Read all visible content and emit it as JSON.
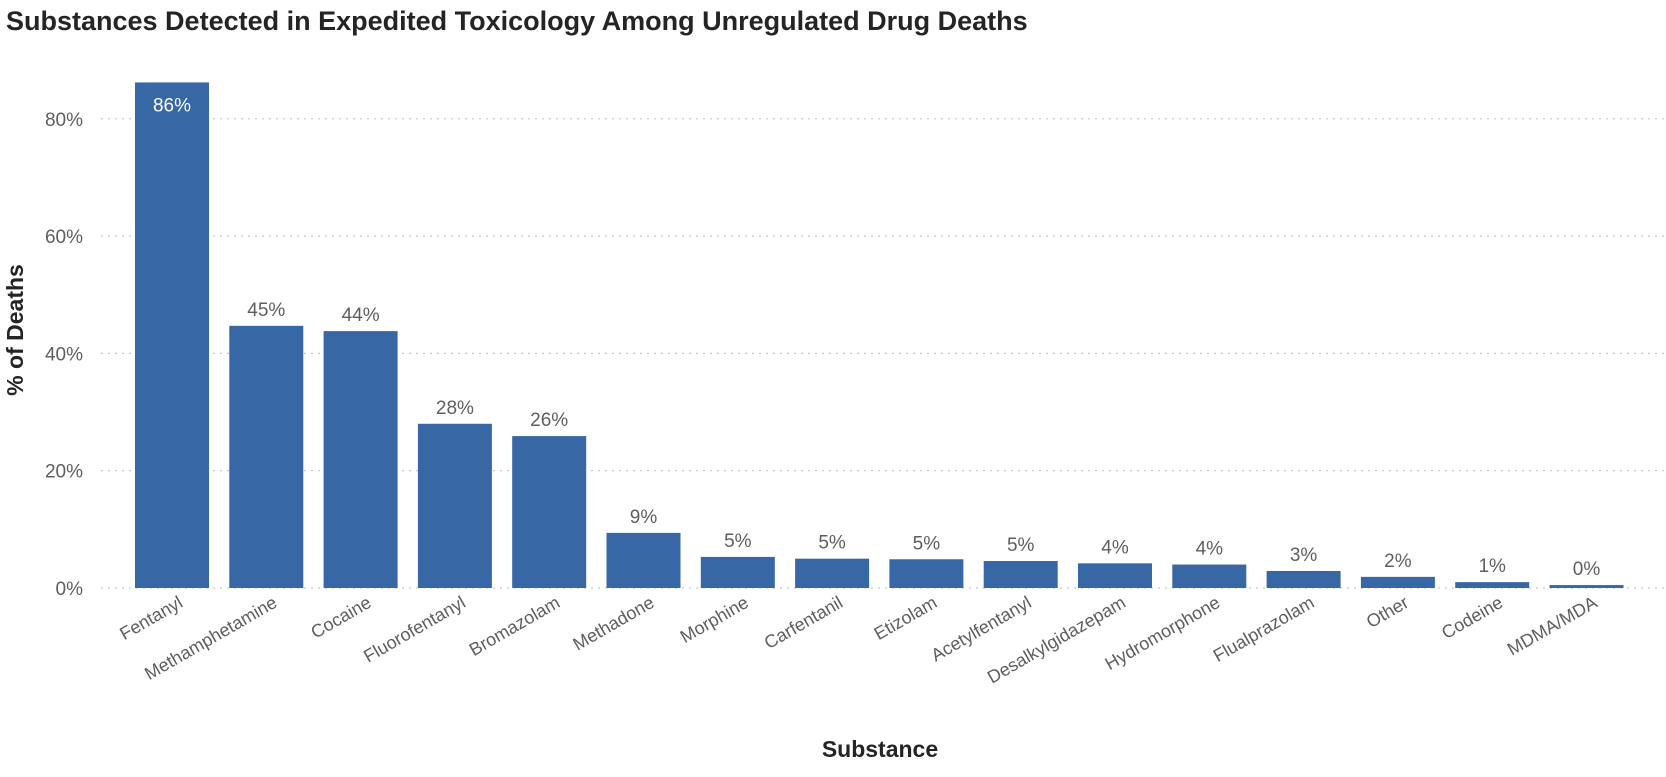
{
  "chart_data": {
    "type": "bar",
    "title": "Substances Detected in Expedited Toxicology Among Unregulated Drug Deaths",
    "xlabel": "Substance",
    "ylabel": "% of Deaths",
    "ylim": [
      0,
      0.88
    ],
    "yticks": [
      0,
      0.2,
      0.4,
      0.6,
      0.8
    ],
    "ytick_labels": [
      "0%",
      "20%",
      "40%",
      "60%",
      "80%"
    ],
    "grid": true,
    "bar_color": "#3767A4",
    "categories": [
      "Fentanyl",
      "Methamphetamine",
      "Cocaine",
      "Fluorofentanyl",
      "Bromazolam",
      "Methadone",
      "Morphine",
      "Carfentanil",
      "Etizolam",
      "Acetylfentanyl",
      "Desalkylgidazepam",
      "Hydromorphone",
      "Flualprazolam",
      "Other",
      "Codeine",
      "MDMA/MDA"
    ],
    "values": [
      0.862,
      0.447,
      0.438,
      0.28,
      0.259,
      0.094,
      0.053,
      0.05,
      0.049,
      0.046,
      0.042,
      0.04,
      0.029,
      0.019,
      0.01,
      0.005
    ],
    "data_labels": [
      "86%",
      "45%",
      "44%",
      "28%",
      "26%",
      "9%",
      "5%",
      "5%",
      "5%",
      "5%",
      "4%",
      "4%",
      "3%",
      "2%",
      "1%",
      "0%"
    ]
  }
}
